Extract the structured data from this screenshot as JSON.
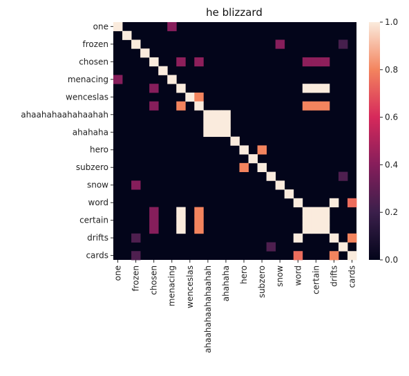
{
  "chart_data": {
    "type": "heatmap",
    "title": "he blizzard",
    "row_labels": [
      "one",
      "frozen",
      "chosen",
      "menacing",
      "wenceslas",
      "ahaahahaahahaahah",
      "ahahaha",
      "hero",
      "subzero",
      "snow",
      "word",
      "certain",
      "drifts",
      "cards"
    ],
    "col_labels": [
      "one",
      "frozen",
      "chosen",
      "menacing",
      "wenceslas",
      "ahaahahaahahaahah",
      "ahahaha",
      "hero",
      "subzero",
      "snow",
      "word",
      "certain",
      "drifts",
      "cards"
    ],
    "n": 27,
    "diagonal": 1.0,
    "cells": [
      {
        "r": 0,
        "c": 6,
        "v": 0.4
      },
      {
        "r": 2,
        "c": 18,
        "v": 0.4
      },
      {
        "r": 2,
        "c": 25,
        "v": 0.23
      },
      {
        "r": 2,
        "c": 27,
        "v": 0.3
      },
      {
        "r": 4,
        "c": 7,
        "v": 0.42
      },
      {
        "r": 4,
        "c": 9,
        "v": 0.42
      },
      {
        "r": 4,
        "c": 21,
        "v": 0.42
      },
      {
        "r": 4,
        "c": 22,
        "v": 0.42
      },
      {
        "r": 4,
        "c": 23,
        "v": 0.42
      },
      {
        "r": 6,
        "c": 0,
        "v": 0.4
      },
      {
        "r": 7,
        "c": 4,
        "v": 0.4
      },
      {
        "r": 7,
        "c": 21,
        "v": 1.0
      },
      {
        "r": 7,
        "c": 22,
        "v": 1.0
      },
      {
        "r": 7,
        "c": 23,
        "v": 1.0
      },
      {
        "r": 8,
        "c": 9,
        "v": 0.8
      },
      {
        "r": 9,
        "c": 4,
        "v": 0.4
      },
      {
        "r": 9,
        "c": 7,
        "v": 0.8
      },
      {
        "r": 9,
        "c": 21,
        "v": 0.8
      },
      {
        "r": 9,
        "c": 22,
        "v": 0.8
      },
      {
        "r": 9,
        "c": 23,
        "v": 0.8
      },
      {
        "r": 10,
        "c": 11,
        "v": 1.0
      },
      {
        "r": 10,
        "c": 12,
        "v": 1.0
      },
      {
        "r": 11,
        "c": 10,
        "v": 1.0
      },
      {
        "r": 11,
        "c": 12,
        "v": 1.0
      },
      {
        "r": 12,
        "c": 10,
        "v": 1.0
      },
      {
        "r": 12,
        "c": 11,
        "v": 1.0
      },
      {
        "r": 14,
        "c": 16,
        "v": 0.8
      },
      {
        "r": 16,
        "c": 14,
        "v": 0.8
      },
      {
        "r": 17,
        "c": 25,
        "v": 0.25
      },
      {
        "r": 18,
        "c": 2,
        "v": 0.4
      },
      {
        "r": 20,
        "c": 24,
        "v": 1.0
      },
      {
        "r": 20,
        "c": 26,
        "v": 0.75
      },
      {
        "r": 21,
        "c": 4,
        "v": 0.4
      },
      {
        "r": 21,
        "c": 7,
        "v": 1.0
      },
      {
        "r": 21,
        "c": 9,
        "v": 0.8
      },
      {
        "r": 21,
        "c": 22,
        "v": 1.0
      },
      {
        "r": 21,
        "c": 23,
        "v": 1.0
      },
      {
        "r": 22,
        "c": 4,
        "v": 0.4
      },
      {
        "r": 22,
        "c": 7,
        "v": 1.0
      },
      {
        "r": 22,
        "c": 9,
        "v": 0.8
      },
      {
        "r": 22,
        "c": 21,
        "v": 1.0
      },
      {
        "r": 22,
        "c": 23,
        "v": 1.0
      },
      {
        "r": 23,
        "c": 4,
        "v": 0.4
      },
      {
        "r": 23,
        "c": 7,
        "v": 1.0
      },
      {
        "r": 23,
        "c": 9,
        "v": 0.8
      },
      {
        "r": 23,
        "c": 21,
        "v": 1.0
      },
      {
        "r": 23,
        "c": 22,
        "v": 1.0
      },
      {
        "r": 24,
        "c": 2,
        "v": 0.25
      },
      {
        "r": 24,
        "c": 20,
        "v": 1.0
      },
      {
        "r": 24,
        "c": 26,
        "v": 0.8
      },
      {
        "r": 25,
        "c": 17,
        "v": 0.25
      },
      {
        "r": 26,
        "c": 2,
        "v": 0.25
      },
      {
        "r": 26,
        "c": 20,
        "v": 0.75
      },
      {
        "r": 26,
        "c": 24,
        "v": 0.8
      }
    ],
    "colorbar": {
      "min": 0.0,
      "max": 1.0,
      "ticks": [
        "0.0",
        "0.2",
        "0.4",
        "0.6",
        "0.8",
        "1.0"
      ]
    }
  }
}
